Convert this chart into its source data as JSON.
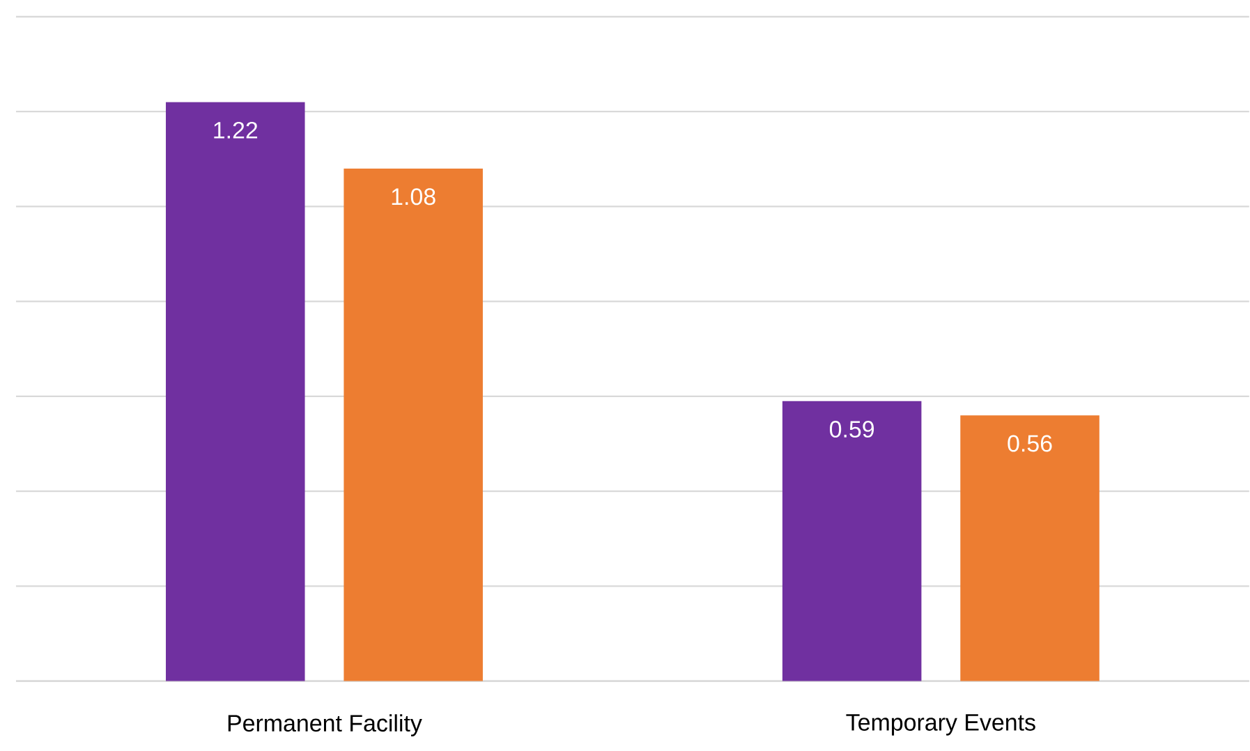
{
  "chart_data": {
    "type": "bar",
    "categories": [
      "Permanent Facility",
      "Temporary Events"
    ],
    "series": [
      {
        "color": "#7030a0",
        "values": [
          1.22,
          0.59
        ]
      },
      {
        "color": "#ed7d31",
        "values": [
          1.08,
          0.56
        ]
      }
    ],
    "ylim": [
      0,
      1.4
    ],
    "yticks": [
      {
        "value": 0,
        "label": null
      },
      {
        "value": 0.2,
        "label": null
      },
      {
        "value": 0.4,
        "label": null
      },
      {
        "value": 0.6,
        "label": null
      },
      {
        "value": 0.8,
        "label": null
      },
      {
        "value": 1.0,
        "label": null
      },
      {
        "value": 1.2,
        "label": null
      },
      {
        "value": 1.4,
        "label": null
      }
    ],
    "grid": "y",
    "tick_labels": "x",
    "data_labels": true
  }
}
